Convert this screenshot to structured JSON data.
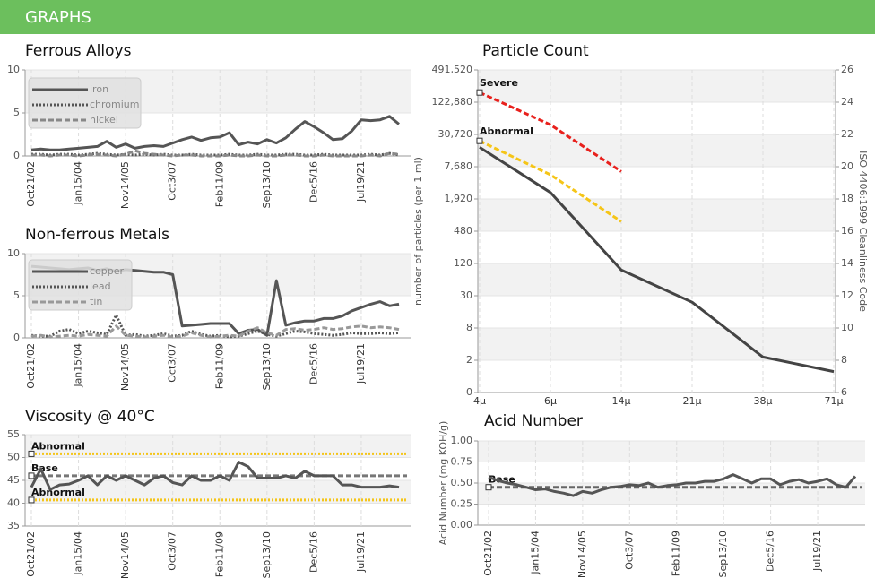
{
  "header": {
    "title": "GRAPHS"
  },
  "chart_data": [
    {
      "type": "line",
      "title": "Ferrous Alloys",
      "categories": [
        "Oct21/02",
        null,
        null,
        null,
        null,
        "Jan15/04",
        null,
        null,
        null,
        null,
        "Nov14/05",
        null,
        null,
        null,
        null,
        "Oct3/07",
        null,
        null,
        null,
        null,
        "Feb11/09",
        null,
        null,
        null,
        null,
        "Sep13/10",
        null,
        null,
        null,
        null,
        "Dec5/16",
        null,
        null,
        null,
        null,
        "Jul19/21",
        null,
        null,
        null,
        null
      ],
      "ylim": [
        0,
        10
      ],
      "yticks": [
        0,
        5,
        10
      ],
      "grid": true,
      "legend": "upper-left",
      "series": [
        {
          "name": "iron",
          "color": "#555555",
          "style": "solid",
          "values": [
            0.7,
            0.8,
            0.7,
            0.7,
            0.8,
            0.9,
            1.0,
            1.1,
            1.7,
            1.0,
            1.4,
            0.9,
            1.1,
            1.2,
            1.1,
            1.5,
            1.9,
            2.2,
            1.8,
            2.1,
            2.2,
            2.7,
            1.3,
            1.6,
            1.4,
            1.9,
            1.5,
            2.1,
            3.1,
            4.0,
            3.4,
            2.7,
            1.9,
            2.0,
            2.9,
            4.2,
            4.1,
            4.2,
            4.6,
            3.7
          ]
        },
        {
          "name": "chromium",
          "color": "#555555",
          "style": "dotted",
          "values": [
            0.2,
            0.2,
            0.1,
            0.2,
            0.2,
            0.1,
            0.2,
            0.3,
            0.2,
            0.1,
            0.2,
            0.1,
            0.2,
            0.1,
            0.2,
            0.1,
            0.1,
            0.2,
            0.1,
            0.1,
            0.1,
            0.2,
            0.1,
            0.1,
            0.2,
            0.1,
            0.1,
            0.2,
            0.2,
            0.1,
            0.1,
            0.2,
            0.1,
            0.1,
            0.1,
            0.1,
            0.2,
            0.1,
            0.3,
            0.1
          ]
        },
        {
          "name": "nickel",
          "color": "#888888",
          "style": "dashed",
          "values": [
            0.1,
            0.1,
            0.0,
            0.1,
            0.1,
            0.0,
            0.1,
            0.2,
            0.1,
            0.0,
            0.2,
            0.6,
            0.3,
            0.2,
            0.1,
            0.0,
            0.1,
            0.1,
            0.0,
            0.0,
            0.0,
            0.1,
            0.0,
            0.0,
            0.1,
            0.0,
            0.0,
            0.1,
            0.1,
            0.0,
            0.0,
            0.1,
            0.0,
            0.0,
            0.0,
            0.0,
            0.1,
            0.0,
            0.3,
            0.2
          ]
        }
      ]
    },
    {
      "type": "line",
      "title": "Non-ferrous Metals",
      "categories": [
        "Oct21/02",
        null,
        null,
        null,
        null,
        "Jan15/04",
        null,
        null,
        null,
        null,
        "Nov14/05",
        null,
        null,
        null,
        null,
        "Oct3/07",
        null,
        null,
        null,
        null,
        "Feb11/09",
        null,
        null,
        null,
        null,
        "Sep13/10",
        null,
        null,
        null,
        null,
        "Dec5/16",
        null,
        null,
        null,
        null,
        "Jul19/21",
        null,
        null,
        null,
        null
      ],
      "ylim": [
        0,
        10
      ],
      "yticks": [
        0,
        5,
        10
      ],
      "grid": true,
      "legend": "upper-left",
      "series": [
        {
          "name": "copper",
          "color": "#555555",
          "style": "solid",
          "values": [
            8.5,
            8.4,
            8.3,
            8.2,
            8.1,
            8.2,
            8.3,
            8.0,
            8.2,
            7.9,
            8.1,
            8.0,
            7.9,
            7.8,
            7.8,
            7.5,
            1.4,
            1.5,
            1.6,
            1.7,
            1.7,
            1.7,
            0.5,
            0.9,
            1.0,
            0.3,
            6.8,
            1.5,
            1.8,
            2.0,
            2.0,
            2.3,
            2.3,
            2.6,
            3.2,
            3.6,
            4.0,
            4.3,
            3.8,
            4.0
          ]
        },
        {
          "name": "lead",
          "color": "#555555",
          "style": "dotted",
          "values": [
            0.3,
            0.2,
            0.2,
            0.8,
            1.0,
            0.5,
            0.8,
            0.6,
            0.4,
            2.7,
            0.3,
            0.4,
            0.2,
            0.3,
            0.5,
            0.2,
            0.3,
            0.8,
            0.4,
            0.2,
            0.3,
            0.1,
            0.2,
            0.5,
            0.8,
            0.4,
            0.2,
            0.5,
            0.8,
            0.7,
            0.5,
            0.4,
            0.3,
            0.4,
            0.6,
            0.5,
            0.5,
            0.6,
            0.5,
            0.6
          ]
        },
        {
          "name": "tin",
          "color": "#999999",
          "style": "dashed",
          "values": [
            0.2,
            0.3,
            0.1,
            0.2,
            0.3,
            0.2,
            0.4,
            0.3,
            0.2,
            1.4,
            0.3,
            0.2,
            0.1,
            0.2,
            0.3,
            0.1,
            0.2,
            0.6,
            0.3,
            0.1,
            0.2,
            0.3,
            0.2,
            0.8,
            1.2,
            0.6,
            0.3,
            1.0,
            1.1,
            0.9,
            1.0,
            1.2,
            1.0,
            1.1,
            1.3,
            1.4,
            1.2,
            1.3,
            1.2,
            1.0
          ]
        }
      ]
    },
    {
      "type": "line",
      "title": "Viscosity @ 40°C",
      "categories": [
        "Oct21/02",
        null,
        null,
        null,
        null,
        "Jan15/04",
        null,
        null,
        null,
        null,
        "Nov14/05",
        null,
        null,
        null,
        null,
        "Oct3/07",
        null,
        null,
        null,
        null,
        "Feb11/09",
        null,
        null,
        null,
        null,
        "Sep13/10",
        null,
        null,
        null,
        null,
        "Dec5/16",
        null,
        null,
        null,
        null,
        "Jul19/21",
        null,
        null,
        null,
        null
      ],
      "ylim": [
        35,
        55
      ],
      "yticks": [
        35,
        40,
        45,
        50,
        55
      ],
      "grid": true,
      "series": [
        {
          "color": "#555555",
          "style": "solid",
          "values": [
            43.5,
            47.5,
            43.0,
            44.0,
            44.2,
            45.0,
            46.0,
            44.0,
            46.0,
            45.0,
            46.0,
            45.0,
            44.0,
            45.5,
            46.0,
            44.5,
            44.0,
            46.0,
            45.0,
            45.0,
            46.0,
            45.0,
            49.0,
            48.0,
            45.5,
            45.5,
            45.5,
            46.0,
            45.5,
            47.0,
            46.0,
            46.0,
            46.0,
            44.0,
            44.0,
            43.5,
            43.5,
            43.5,
            43.8,
            43.5
          ]
        }
      ],
      "reference_lines": [
        {
          "label": "Abnormal",
          "value": 50.8,
          "color": "#f5c518",
          "style": "dotted"
        },
        {
          "label": "Base",
          "value": 46,
          "color": "#777777",
          "style": "dashed"
        },
        {
          "label": "Abnormal",
          "value": 40.7,
          "color": "#f5c518",
          "style": "dotted"
        }
      ]
    },
    {
      "type": "line",
      "title": "Particle Count",
      "categories": [
        "4μ",
        "6μ",
        "14μ",
        "21μ",
        "38μ",
        "71μ"
      ],
      "ylabel": "number of particles (per 1 ml)",
      "y2label": "ISO 4406:1999 Cleanliness Code",
      "yticks": [
        0,
        2,
        8,
        30,
        120,
        480,
        {
          "value": 1920,
          "label": "1,920"
        },
        {
          "value": 7680,
          "label": "7,680"
        },
        {
          "value": 30720,
          "label": "30,720"
        },
        {
          "value": 122880,
          "label": "122,880"
        },
        {
          "value": 491520,
          "label": "491,520"
        }
      ],
      "y2lim": [
        6,
        26
      ],
      "y2ticks": [
        6,
        8,
        10,
        12,
        14,
        16,
        18,
        20,
        22,
        24,
        26
      ],
      "grid": true,
      "series": [
        {
          "color": "#444444",
          "style": "solid",
          "axis": "y2",
          "values": [
            21.2,
            18.4,
            13.6,
            11.6,
            8.2,
            7.3
          ]
        },
        {
          "name": "Severe",
          "color": "#e8201c",
          "style": "dashed",
          "axis": "y2",
          "values": [
            24.6,
            22.6,
            19.7,
            null,
            null,
            null
          ]
        },
        {
          "name": "Abnormal",
          "color": "#f5c518",
          "style": "dashed",
          "axis": "y2",
          "values": [
            21.6,
            19.5,
            16.6,
            null,
            null,
            null
          ]
        }
      ]
    },
    {
      "type": "line",
      "title": "Acid Number",
      "ylabel": "Acid Number (mg KOH/g)",
      "categories": [
        "Oct21/02",
        null,
        null,
        null,
        null,
        "Jan15/04",
        null,
        null,
        null,
        null,
        "Nov14/05",
        null,
        null,
        null,
        null,
        "Oct3/07",
        null,
        null,
        null,
        null,
        "Feb11/09",
        null,
        null,
        null,
        null,
        "Sep13/10",
        null,
        null,
        null,
        null,
        "Dec5/16",
        null,
        null,
        null,
        null,
        "Jul19/21",
        null,
        null,
        null,
        null
      ],
      "ylim": [
        0,
        1
      ],
      "yticks": [
        {
          "value": 0,
          "label": "0.00"
        },
        {
          "value": 0.25,
          "label": "0.25"
        },
        {
          "value": 0.5,
          "label": "0.50"
        },
        {
          "value": 0.75,
          "label": "0.75"
        },
        {
          "value": 1,
          "label": "1.00"
        }
      ],
      "grid": true,
      "series": [
        {
          "color": "#555555",
          "style": "solid",
          "values": [
            0.57,
            0.53,
            0.5,
            0.48,
            0.45,
            0.42,
            0.43,
            0.4,
            0.38,
            0.35,
            0.4,
            0.38,
            0.42,
            0.45,
            0.46,
            0.48,
            0.47,
            0.5,
            0.45,
            0.47,
            0.48,
            0.5,
            0.5,
            0.52,
            0.52,
            0.55,
            0.6,
            0.55,
            0.5,
            0.55,
            0.55,
            0.48,
            0.52,
            0.54,
            0.5,
            0.52,
            0.55,
            0.48,
            0.45,
            0.58
          ]
        }
      ],
      "reference_lines": [
        {
          "label": "Base",
          "value": 0.45,
          "color": "#666666",
          "style": "dashed"
        }
      ]
    }
  ]
}
